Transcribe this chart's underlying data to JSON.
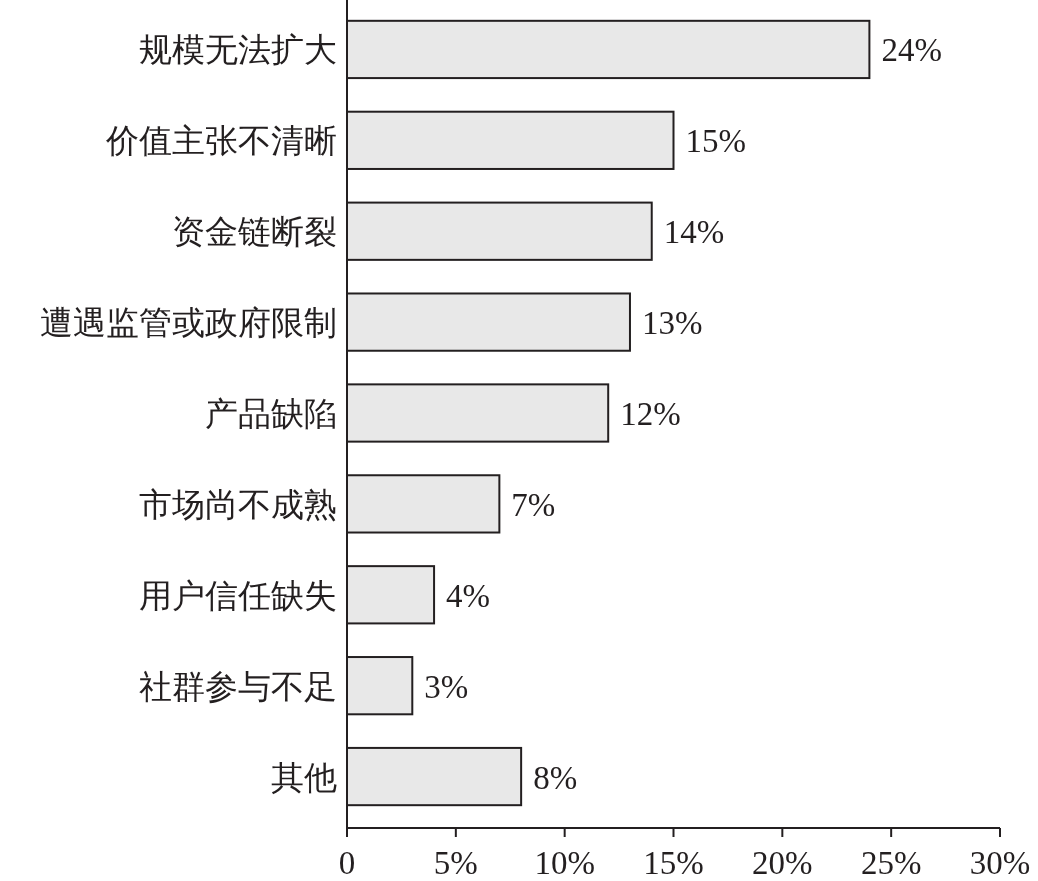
{
  "chart_data": {
    "type": "bar",
    "orientation": "horizontal",
    "categories": [
      "规模无法扩大",
      "价值主张不清晰",
      "资金链断裂",
      "遭遇监管或政府限制",
      "产品缺陷",
      "市场尚不成熟",
      "用户信任缺失",
      "社群参与不足",
      "其他"
    ],
    "values": [
      24,
      15,
      14,
      13,
      12,
      7,
      4,
      3,
      8
    ],
    "value_labels": [
      "24%",
      "15%",
      "14%",
      "13%",
      "12%",
      "7%",
      "4%",
      "3%",
      "8%"
    ],
    "color": "#e8e8e8",
    "xlim": [
      0,
      30
    ],
    "xticks": [
      0,
      {
        "value": 5,
        "label": "5%"
      },
      {
        "value": 10,
        "label": "10%"
      },
      {
        "value": 15,
        "label": "15%"
      },
      {
        "value": 20,
        "label": "20%"
      },
      {
        "value": 25,
        "label": "25%"
      },
      {
        "value": 30,
        "label": "30%"
      }
    ]
  }
}
